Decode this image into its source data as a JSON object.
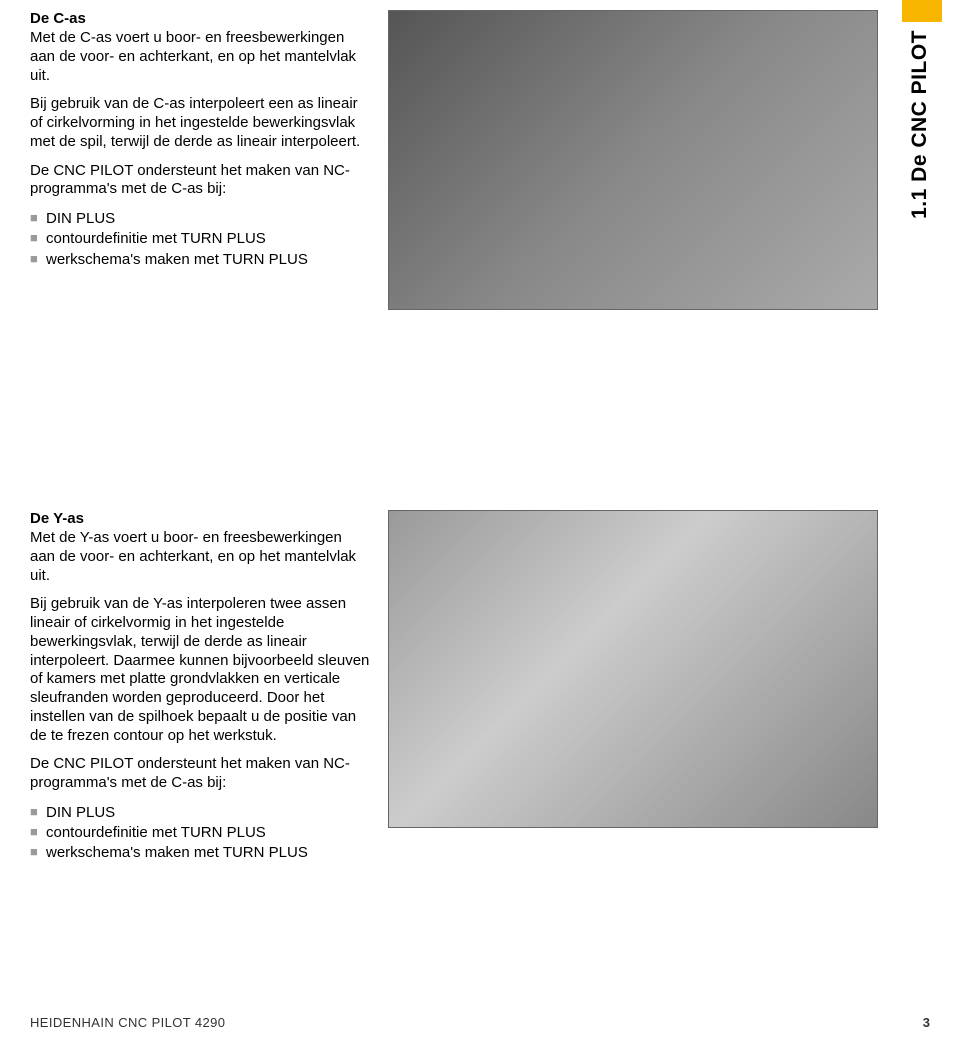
{
  "sidebar": {
    "label": "1.1 De CNC PILOT",
    "marker_color": "#f7b500"
  },
  "section_c": {
    "heading": "De C-as",
    "para1": "Met de C-as voert u boor- en freesbewerkingen aan de voor- en achterkant, en op het mantelvlak uit.",
    "para2": "Bij gebruik van de C-as interpoleert een as lineair of cirkelvorming in het ingestelde bewerkingsvlak met de spil, terwijl de derde as lineair interpoleert.",
    "para3": "De CNC PILOT ondersteunt het maken van NC-programma's met de C-as bij:",
    "items": [
      "DIN PLUS",
      "contourdefinitie met TURN PLUS",
      "werkschema's maken met TURN PLUS"
    ]
  },
  "section_y": {
    "heading": "De Y-as",
    "para1": "Met de Y-as voert u boor- en freesbewerkingen aan de voor- en achterkant, en op het mantelvlak uit.",
    "para2": "Bij gebruik van de Y-as interpoleren twee assen lineair of cirkelvormig in het ingestelde bewerkingsvlak, terwijl de derde as lineair interpoleert. Daarmee kunnen bijvoorbeeld sleuven of kamers met platte grondvlakken en verticale sleufranden worden geproduceerd. Door het instellen van de spilhoek bepaalt u de positie van de te frezen contour op het werkstuk.",
    "para3": "De CNC PILOT ondersteunt het maken van NC-programma's met de C-as bij:",
    "items": [
      "DIN PLUS",
      "contourdefinitie met TURN PLUS",
      "werkschema's maken met TURN PLUS"
    ]
  },
  "footer": {
    "left": "HEIDENHAIN CNC PILOT 4290",
    "page": "3"
  }
}
